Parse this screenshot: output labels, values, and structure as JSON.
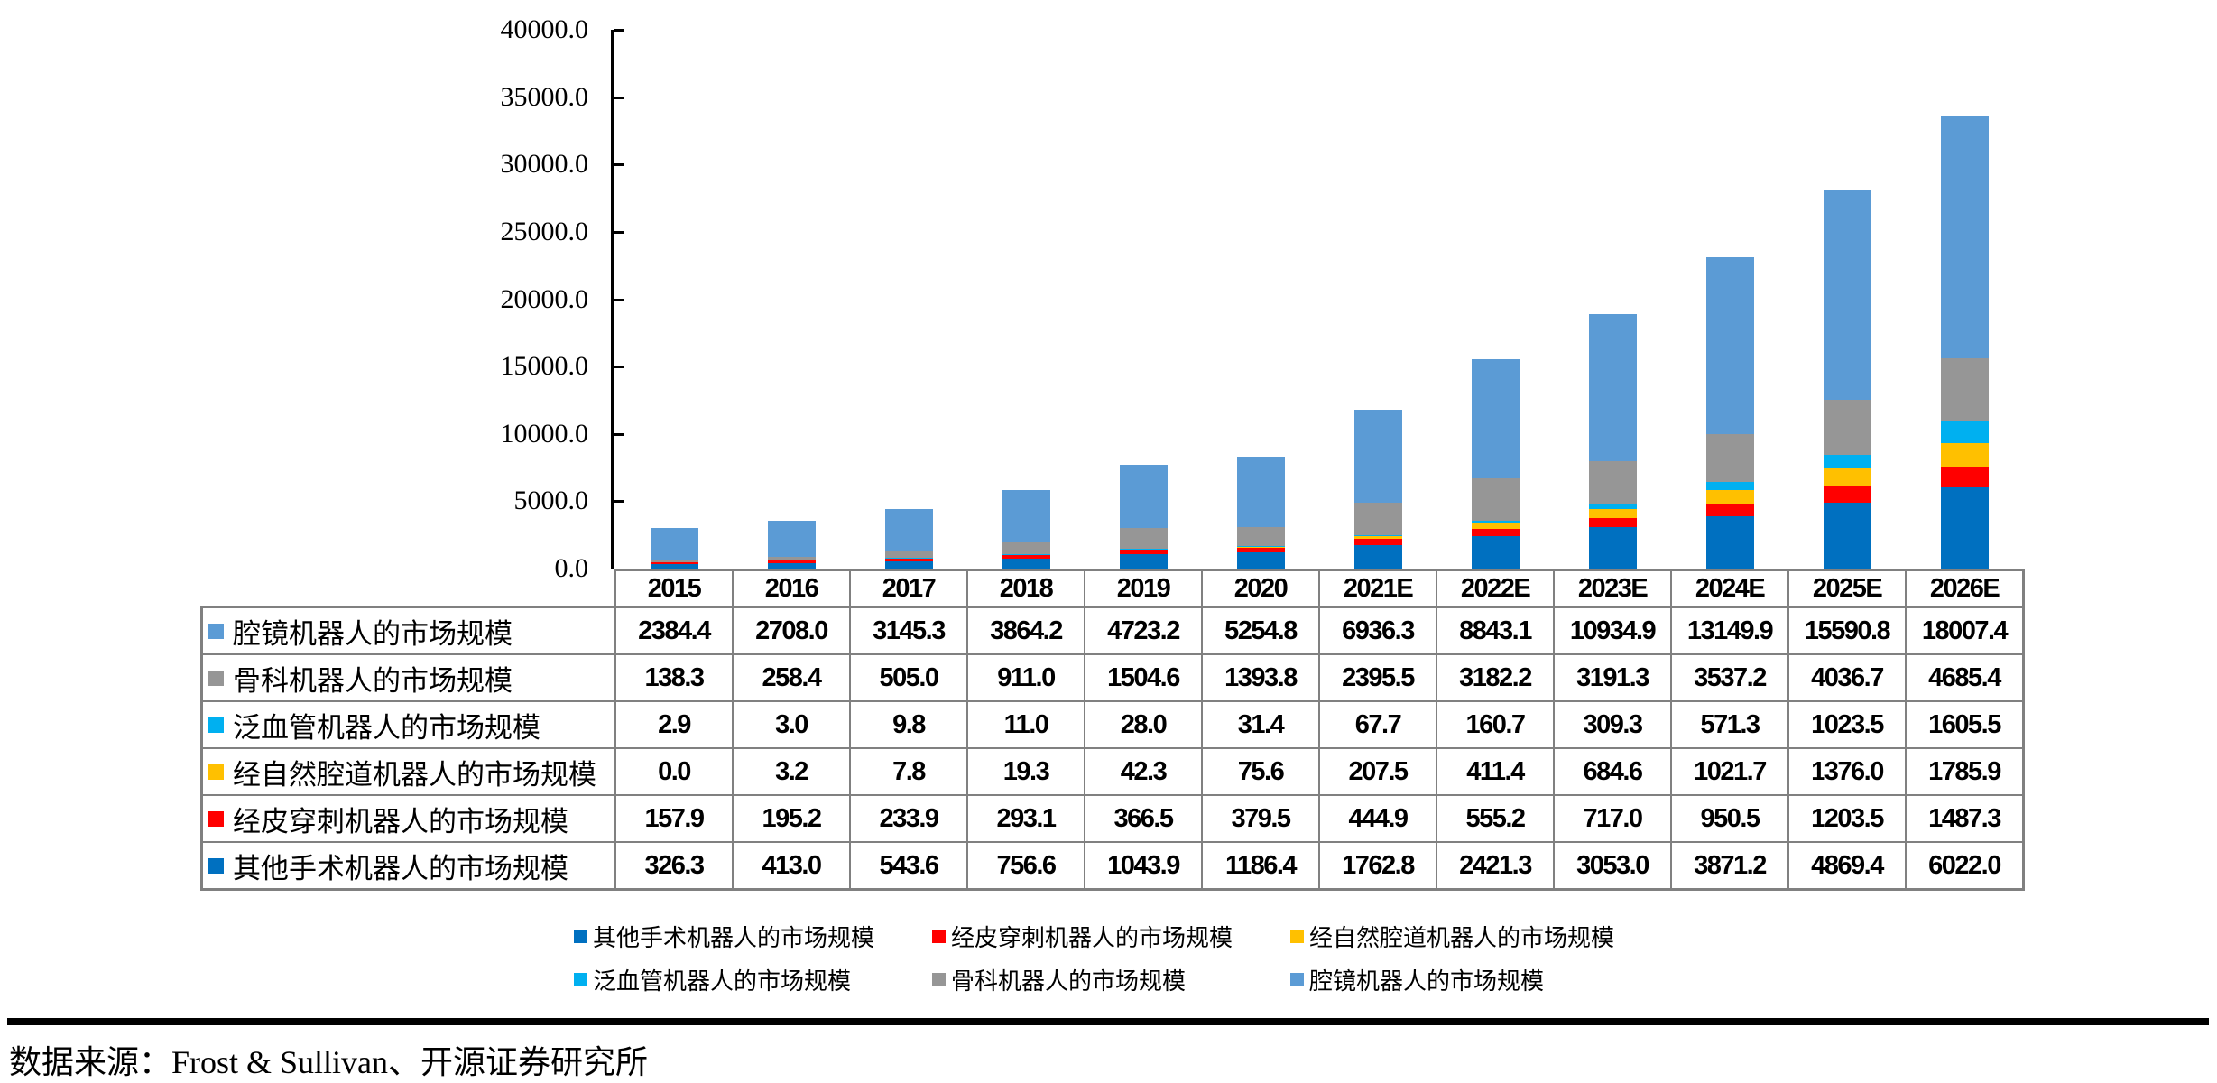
{
  "chart_data": {
    "type": "bar",
    "stacked": true,
    "title": "",
    "xlabel": "",
    "ylabel": "",
    "ylim": [
      0,
      40000
    ],
    "grid": false,
    "legend_position": "bottom",
    "y_tick_labels": [
      "40000.0",
      "35000.0",
      "30000.0",
      "25000.0",
      "20000.0",
      "15000.0",
      "10000.0",
      "5000.0",
      "0.0"
    ],
    "categories": [
      "2015",
      "2016",
      "2017",
      "2018",
      "2019",
      "2020",
      "2021E",
      "2022E",
      "2023E",
      "2024E",
      "2025E",
      "2026E"
    ],
    "series": [
      {
        "name": "其他手术机器人的市场规模",
        "color": "#0070C0",
        "values": [
          326.3,
          413.0,
          543.6,
          756.6,
          1043.9,
          1186.4,
          1762.8,
          2421.3,
          3053.0,
          3871.2,
          4869.4,
          6022.0
        ]
      },
      {
        "name": "经皮穿刺机器人的市场规模",
        "color": "#FF0000",
        "values": [
          157.9,
          195.2,
          233.9,
          293.1,
          366.5,
          379.5,
          444.9,
          555.2,
          717.0,
          950.5,
          1203.5,
          1487.3
        ]
      },
      {
        "name": "经自然腔道机器人的市场规模",
        "color": "#FFC000",
        "values": [
          0.0,
          3.2,
          7.8,
          19.3,
          42.3,
          75.6,
          207.5,
          411.4,
          684.6,
          1021.7,
          1376.0,
          1785.9
        ]
      },
      {
        "name": "泛血管机器人的市场规模",
        "color": "#00B0F0",
        "values": [
          2.9,
          3.0,
          9.8,
          11.0,
          28.0,
          31.4,
          67.7,
          160.7,
          309.3,
          571.3,
          1023.5,
          1605.5
        ]
      },
      {
        "name": "骨科机器人的市场规模",
        "color": "#969696",
        "values": [
          138.3,
          258.4,
          505.0,
          911.0,
          1504.6,
          1393.8,
          2395.5,
          3182.2,
          3191.3,
          3537.2,
          4036.7,
          4685.4
        ]
      },
      {
        "name": "腔镜机器人的市场规模",
        "color": "#5B9BD5",
        "values": [
          2384.4,
          2708.0,
          3145.3,
          3864.2,
          4723.2,
          5254.8,
          6936.3,
          8843.1,
          10934.9,
          13149.9,
          15590.8,
          18007.4
        ]
      }
    ]
  },
  "table": {
    "row_order_top_to_bottom": [
      "腔镜机器人的市场规模",
      "骨科机器人的市场规模",
      "泛血管机器人的市场规模",
      "经自然腔道机器人的市场规模",
      "经皮穿刺机器人的市场规模",
      "其他手术机器人的市场规模"
    ],
    "value_decimals": 1
  },
  "legend": {
    "rows": [
      [
        "其他手术机器人的市场规模",
        "经皮穿刺机器人的市场规模",
        "经自然腔道机器人的市场规模"
      ],
      [
        "泛血管机器人的市场规模",
        "骨科机器人的市场规模",
        "腔镜机器人的市场规模"
      ]
    ]
  },
  "source": {
    "text": "数据来源：Frost & Sullivan、开源证券研究所"
  }
}
